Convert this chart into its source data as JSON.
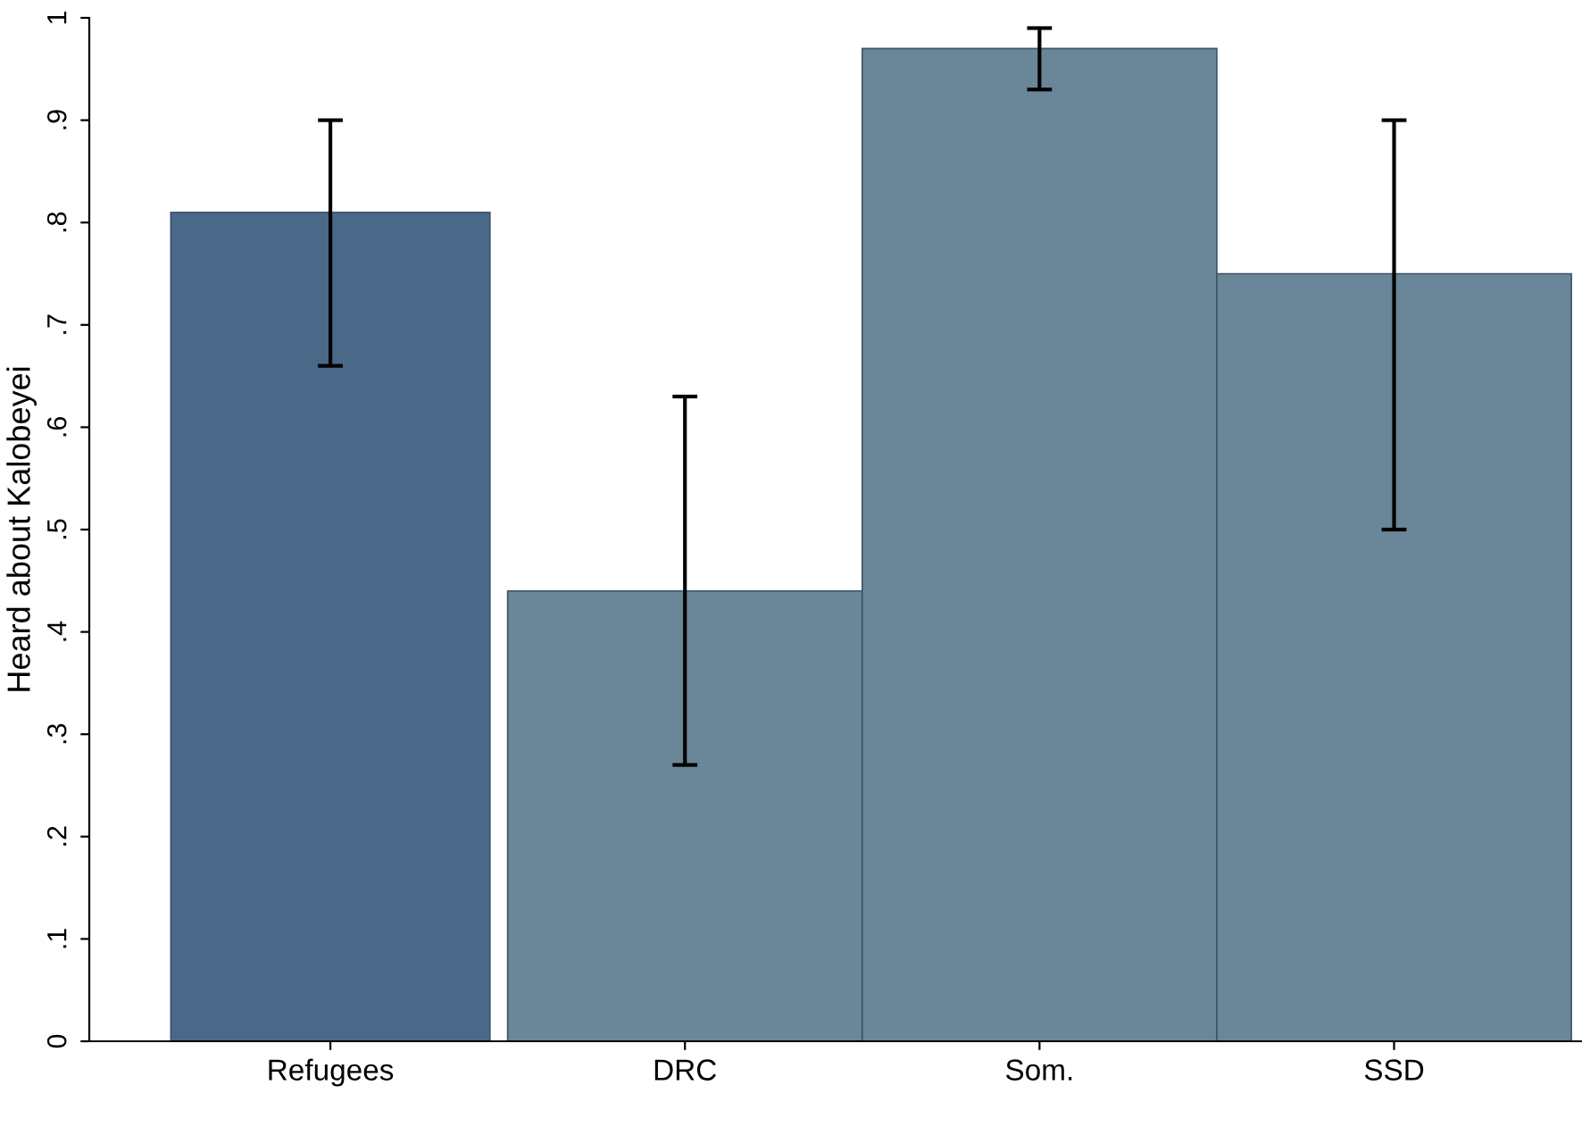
{
  "chart_data": {
    "type": "bar",
    "ylabel": "Heard about Kalobeyei",
    "categories": [
      "Refugees",
      "DRC",
      "Som.",
      "SSD"
    ],
    "values": [
      0.81,
      0.44,
      0.97,
      0.75
    ],
    "colors": [
      "#4a6888",
      "#6a8699",
      "#6a8699",
      "#6a8699"
    ],
    "errors": [
      [
        0.66,
        0.9
      ],
      [
        0.27,
        0.63
      ],
      [
        0.93,
        0.99
      ],
      [
        0.5,
        0.9
      ]
    ],
    "ylim": [
      0,
      1
    ],
    "yticks": [
      {
        "value": 0,
        "label": "0"
      },
      {
        "value": 0.1,
        "label": ".1"
      },
      {
        "value": 0.2,
        "label": ".2"
      },
      {
        "value": 0.3,
        "label": ".3"
      },
      {
        "value": 0.4,
        "label": ".4"
      },
      {
        "value": 0.5,
        "label": ".5"
      },
      {
        "value": 0.6,
        "label": ".6"
      },
      {
        "value": 0.7,
        "label": ".7"
      },
      {
        "value": 0.8,
        "label": ".8"
      },
      {
        "value": 0.9,
        "label": ".9"
      },
      {
        "value": 1,
        "label": "1"
      }
    ],
    "grid": false,
    "legend": false
  }
}
